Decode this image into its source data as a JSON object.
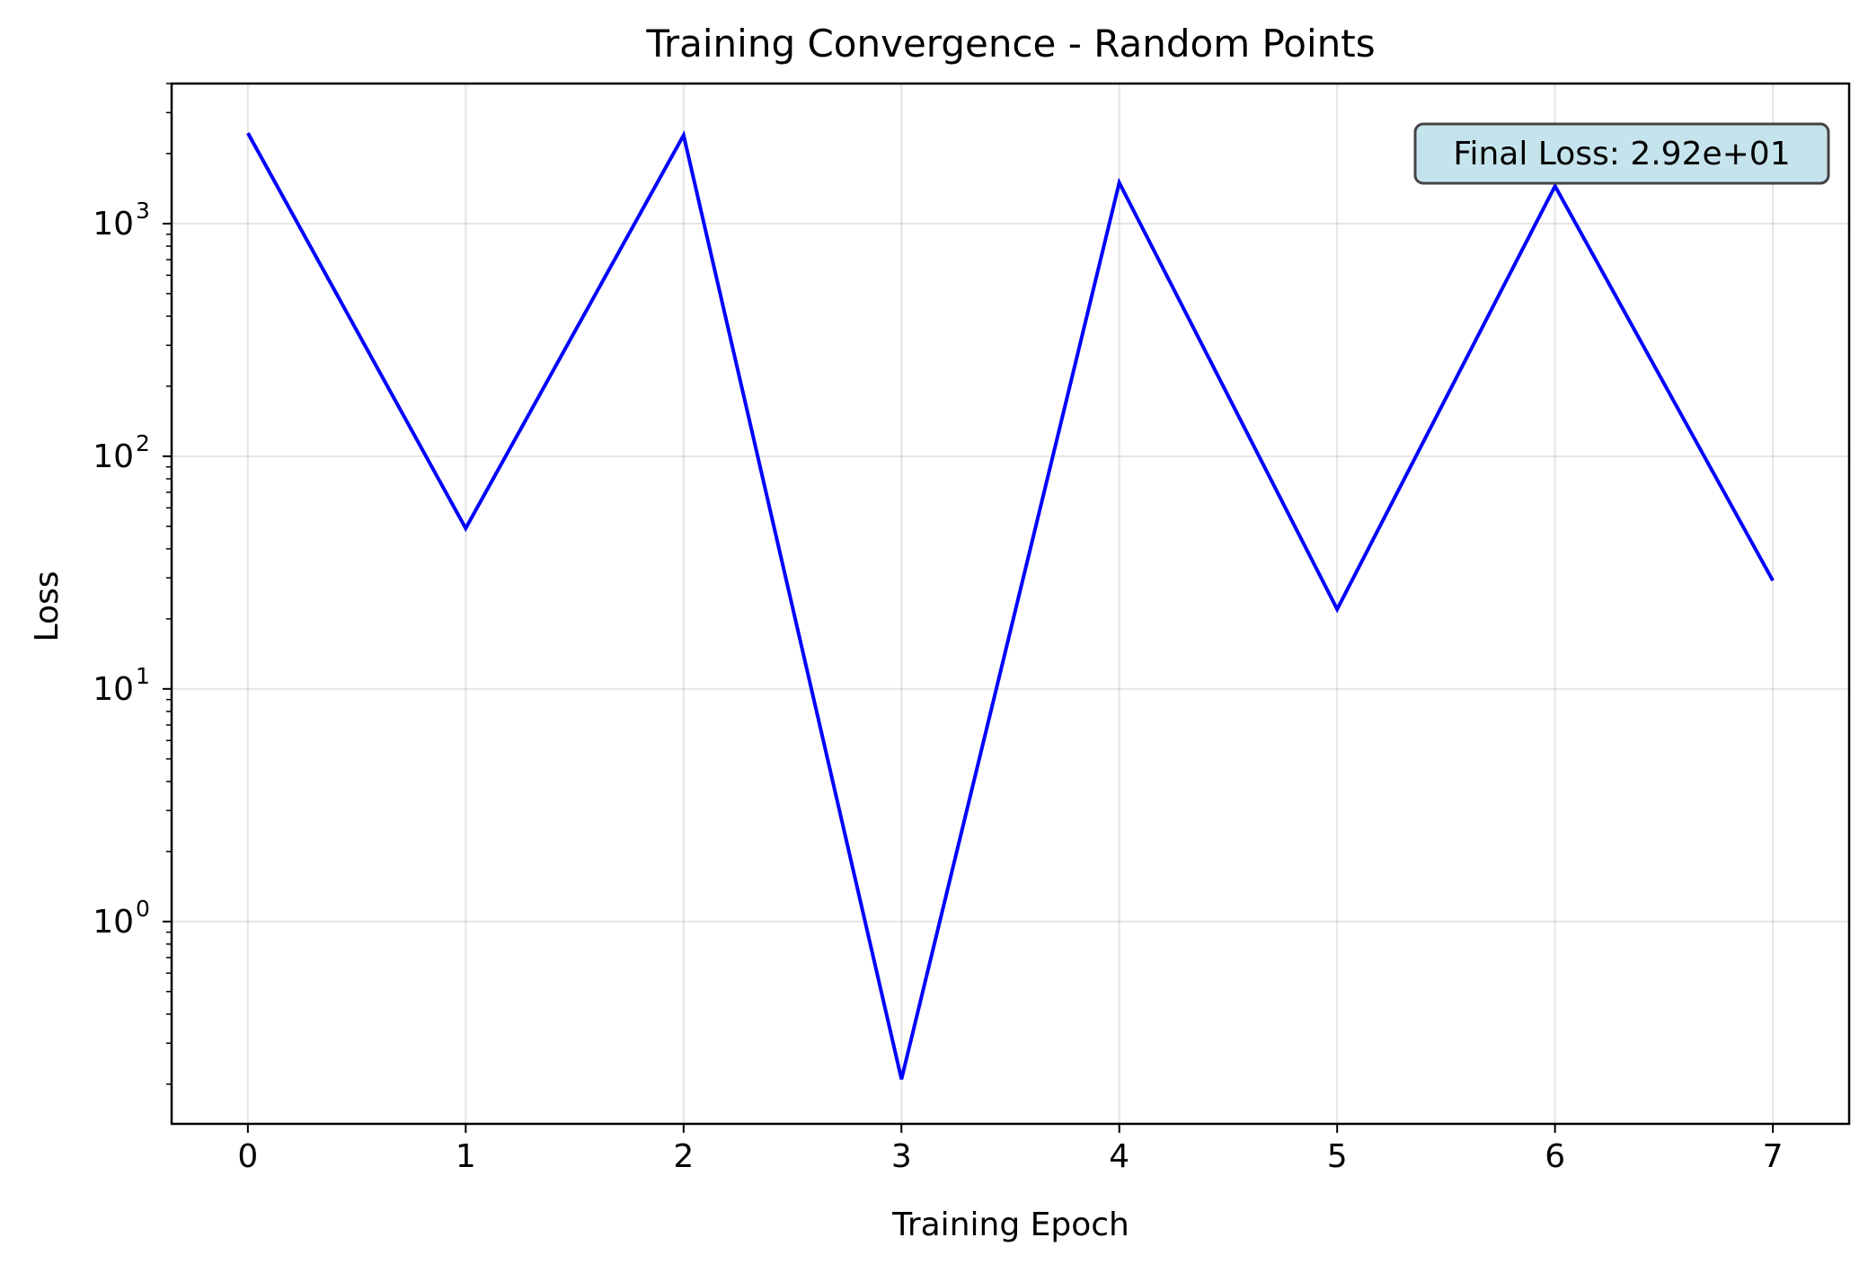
{
  "chart_data": {
    "type": "line",
    "title": "Training Convergence - Random Points",
    "xlabel": "Training Epoch",
    "ylabel": "Loss",
    "yscale": "log",
    "grid": true,
    "xlim": [
      -0.35,
      7.35
    ],
    "ylim": [
      0.135,
      4000
    ],
    "x_ticks": [
      0,
      1,
      2,
      3,
      4,
      5,
      6,
      7
    ],
    "y_ticks": [
      {
        "value": 1,
        "base": "10",
        "exp": "0"
      },
      {
        "value": 10,
        "base": "10",
        "exp": "1"
      },
      {
        "value": 100,
        "base": "10",
        "exp": "2"
      },
      {
        "value": 1000,
        "base": "10",
        "exp": "3"
      }
    ],
    "series": [
      {
        "color": "#0000ff",
        "x": [
          0,
          1,
          2,
          3,
          4,
          5,
          6,
          7
        ],
        "values": [
          2450,
          49,
          2400,
          0.21,
          1500,
          22,
          1450,
          29.2
        ]
      }
    ],
    "annotation": {
      "text": "Final Loss: 2.92e+01",
      "placement": "top-right",
      "background": "#c5e3ec",
      "border": "#444444"
    }
  }
}
